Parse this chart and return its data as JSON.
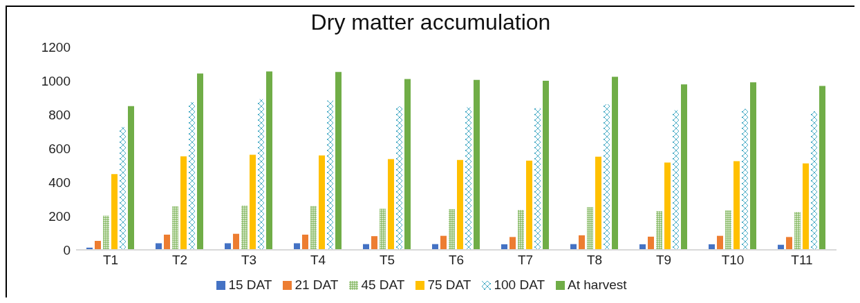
{
  "chart_data": {
    "type": "bar",
    "title": "Dry matter accumulation",
    "categories": [
      "T1",
      "T2",
      "T3",
      "T4",
      "T5",
      "T6",
      "T7",
      "T8",
      "T9",
      "T10",
      "T11"
    ],
    "series": [
      {
        "name": "15 DAT",
        "color": "#4472c4",
        "values": [
          13,
          39,
          39,
          39,
          34,
          34,
          33,
          34,
          33,
          33,
          30
        ]
      },
      {
        "name": "21 DAT",
        "color": "#ed7d31",
        "values": [
          53,
          90,
          95,
          90,
          81,
          83,
          76,
          86,
          78,
          83,
          76
        ]
      },
      {
        "name": "45 DAT",
        "color": "#70ad47",
        "values": [
          202,
          257,
          262,
          259,
          243,
          241,
          236,
          253,
          229,
          233,
          224
        ]
      },
      {
        "name": "75 DAT",
        "color": "#ffc000",
        "values": [
          448,
          553,
          562,
          558,
          537,
          532,
          528,
          551,
          516,
          525,
          511
        ]
      },
      {
        "name": "100 DAT",
        "color": "#4bacc6",
        "values": [
          727,
          873,
          891,
          883,
          848,
          843,
          838,
          861,
          826,
          834,
          819
        ]
      },
      {
        "name": "At harvest",
        "color": "#70ad47",
        "values": [
          850,
          1043,
          1055,
          1052,
          1010,
          1005,
          1000,
          1023,
          979,
          991,
          969
        ]
      }
    ],
    "ylim": [
      0,
      1200
    ],
    "yticks": [
      0,
      200,
      400,
      600,
      800,
      1000,
      1200
    ],
    "grid": false,
    "legend": "bottom"
  }
}
